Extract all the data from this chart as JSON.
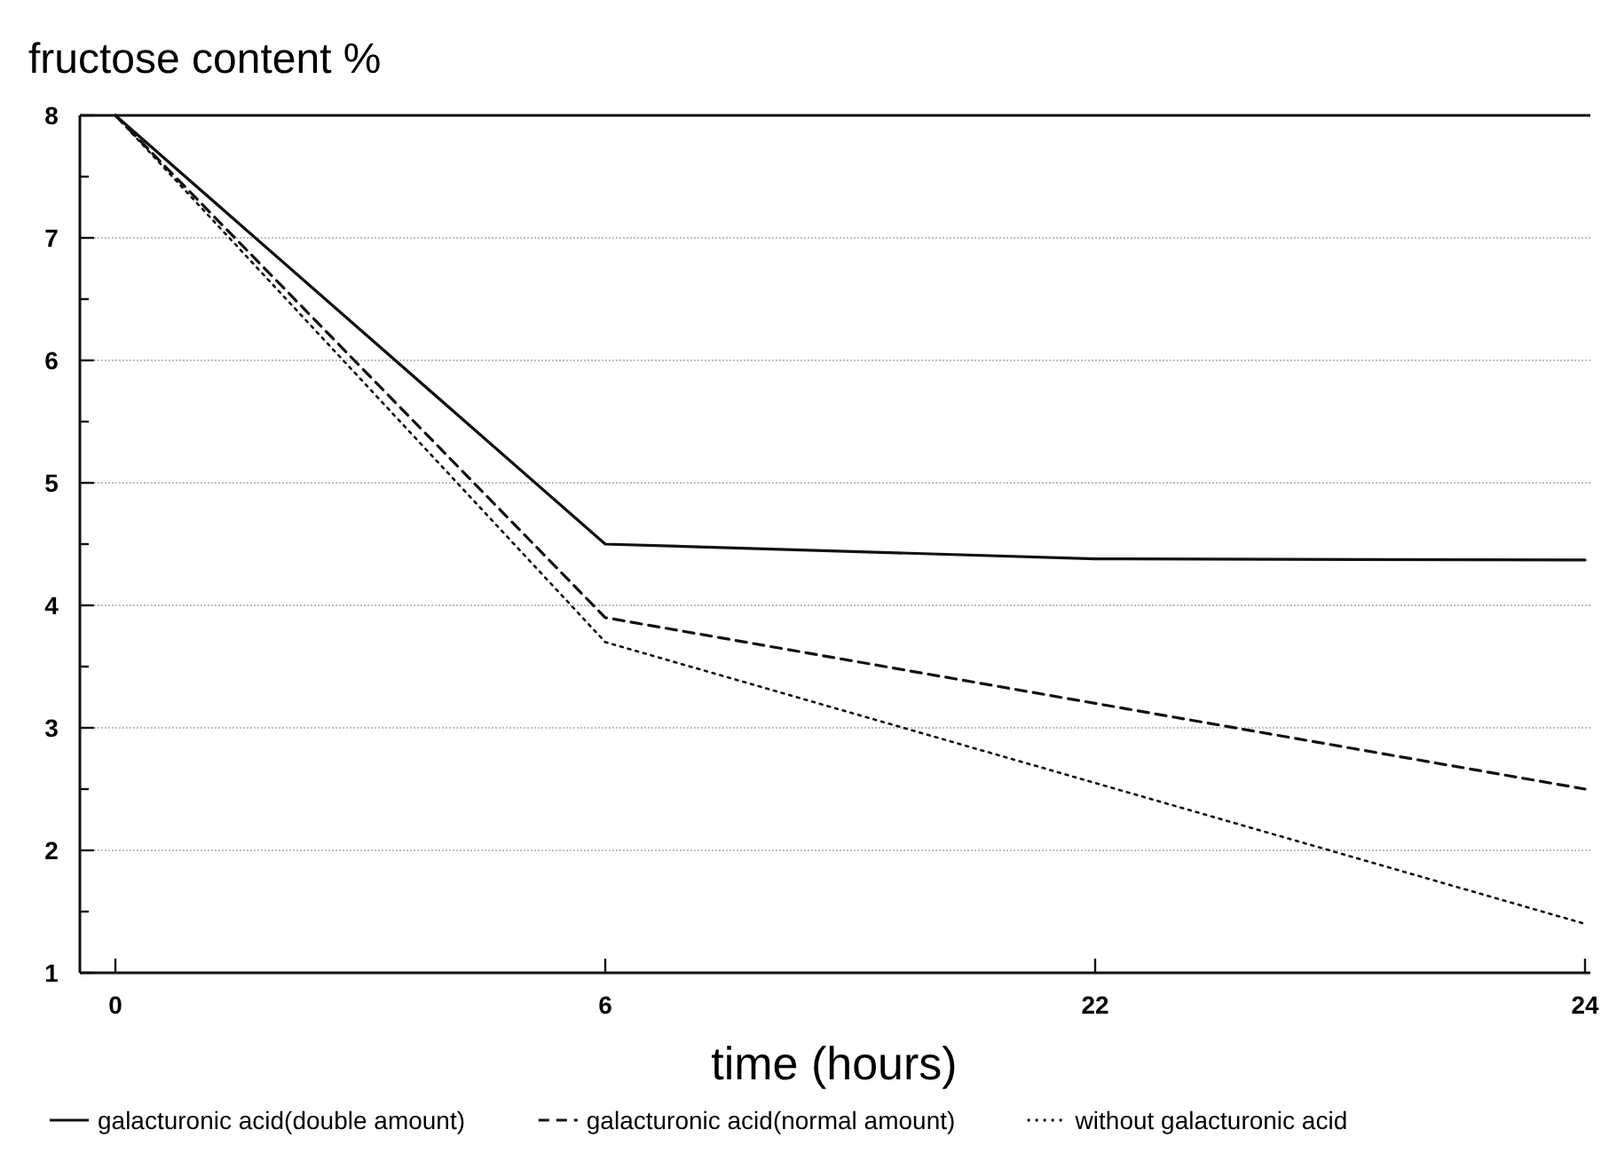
{
  "chart_data": {
    "type": "line",
    "ylabel": "fructose content %",
    "xlabel": "time (hours)",
    "categories": [
      "0",
      "6",
      "22",
      "24"
    ],
    "ylim": [
      1,
      8
    ],
    "yticks": [
      1,
      {
        "value": 1.5,
        "label": null
      },
      2,
      {
        "value": 2.5,
        "label": null
      },
      3,
      {
        "value": 3.5,
        "label": null
      },
      4,
      {
        "value": 4.5,
        "label": null
      },
      5,
      {
        "value": 5.5,
        "label": null
      },
      6,
      {
        "value": 6.5,
        "label": null
      },
      7,
      {
        "value": 7.5,
        "label": null
      },
      8
    ],
    "grid": "y",
    "legend": "bottom",
    "marker": "none",
    "series": [
      {
        "name": "galacturonic acid(double amount)",
        "color": "#111111",
        "line_style": "solid",
        "values": [
          8,
          4.5,
          4.38,
          4.37
        ]
      },
      {
        "name": "galacturonic acid(normal amount)",
        "color": "#111111",
        "line_style": "dashed",
        "values": [
          8,
          3.9,
          3.2,
          2.5
        ]
      },
      {
        "name": "without galacturonic acid",
        "color": "#111111",
        "line_style": "dotted",
        "values": [
          8,
          3.7,
          2.55,
          1.4
        ]
      }
    ]
  }
}
